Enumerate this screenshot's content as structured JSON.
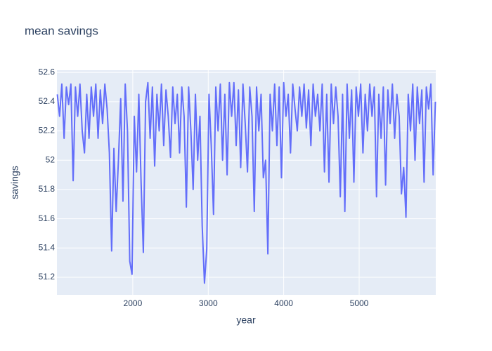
{
  "chart_data": {
    "type": "line",
    "title": "mean savings",
    "x_label": "year",
    "y_label": "savings",
    "color": "#636efa",
    "grid": true,
    "xlim": [
      995,
      6015
    ],
    "xticks": [
      2000,
      3000,
      4000,
      5000
    ],
    "ylim": [
      51.08,
      52.615
    ],
    "yticks": [
      51.2,
      51.4,
      51.6,
      51.8,
      52,
      52.2,
      52.4,
      52.6
    ],
    "x": [
      1000,
      1030,
      1060,
      1090,
      1120,
      1150,
      1180,
      1210,
      1240,
      1270,
      1300,
      1330,
      1360,
      1390,
      1420,
      1450,
      1480,
      1510,
      1540,
      1570,
      1600,
      1630,
      1660,
      1690,
      1720,
      1750,
      1780,
      1810,
      1840,
      1870,
      1900,
      1930,
      1960,
      1990,
      2020,
      2050,
      2080,
      2110,
      2140,
      2170,
      2200,
      2230,
      2260,
      2290,
      2320,
      2350,
      2380,
      2410,
      2440,
      2470,
      2500,
      2530,
      2560,
      2590,
      2620,
      2650,
      2680,
      2710,
      2740,
      2770,
      2800,
      2830,
      2860,
      2890,
      2920,
      2950,
      2980,
      3010,
      3040,
      3070,
      3100,
      3130,
      3160,
      3190,
      3220,
      3250,
      3280,
      3310,
      3340,
      3370,
      3400,
      3430,
      3460,
      3490,
      3520,
      3550,
      3580,
      3610,
      3640,
      3670,
      3700,
      3730,
      3760,
      3790,
      3820,
      3850,
      3880,
      3910,
      3940,
      3970,
      4000,
      4030,
      4060,
      4090,
      4120,
      4150,
      4180,
      4210,
      4240,
      4270,
      4300,
      4330,
      4360,
      4390,
      4420,
      4450,
      4480,
      4510,
      4540,
      4570,
      4600,
      4630,
      4660,
      4690,
      4720,
      4750,
      4780,
      4810,
      4840,
      4870,
      4900,
      4930,
      4960,
      4990,
      5020,
      5050,
      5080,
      5110,
      5140,
      5170,
      5200,
      5230,
      5260,
      5290,
      5320,
      5350,
      5380,
      5410,
      5440,
      5470,
      5500,
      5530,
      5560,
      5590,
      5620,
      5650,
      5680,
      5710,
      5740,
      5770,
      5800,
      5830,
      5860,
      5890,
      5920,
      5950,
      5980,
      6010
    ],
    "values": [
      52.45,
      52.3,
      52.52,
      52.15,
      52.5,
      52.38,
      52.52,
      51.86,
      52.5,
      52.3,
      52.52,
      52.2,
      52.05,
      52.45,
      52.15,
      52.5,
      52.3,
      52.52,
      52.15,
      52.48,
      52.25,
      52.52,
      52.35,
      52.05,
      51.38,
      52.08,
      51.65,
      52.0,
      52.42,
      51.72,
      52.52,
      52.2,
      51.31,
      51.22,
      52.3,
      51.92,
      52.45,
      51.85,
      51.37,
      52.4,
      52.53,
      52.15,
      52.5,
      51.96,
      52.45,
      52.2,
      52.52,
      52.1,
      52.48,
      52.3,
      52.02,
      52.5,
      52.25,
      52.45,
      52.05,
      52.5,
      52.3,
      51.68,
      52.5,
      52.2,
      51.8,
      52.45,
      52.0,
      52.3,
      51.55,
      51.16,
      51.39,
      52.45,
      52.1,
      51.63,
      52.5,
      52.2,
      52.52,
      52.0,
      52.45,
      51.9,
      52.53,
      52.3,
      52.53,
      52.1,
      52.48,
      51.95,
      52.52,
      52.25,
      51.92,
      52.5,
      52.3,
      51.65,
      52.5,
      52.2,
      52.45,
      51.88,
      52.0,
      51.36,
      52.45,
      52.2,
      52.52,
      52.1,
      52.5,
      51.88,
      52.53,
      52.3,
      52.45,
      52.05,
      52.52,
      52.35,
      52.2,
      52.5,
      52.3,
      52.52,
      52.22,
      52.48,
      52.1,
      52.52,
      52.3,
      52.45,
      52.2,
      52.52,
      51.92,
      52.45,
      51.85,
      52.52,
      52.25,
      52.5,
      52.3,
      51.75,
      52.45,
      51.65,
      52.52,
      52.15,
      52.48,
      51.85,
      52.5,
      52.3,
      52.52,
      52.05,
      52.45,
      52.2,
      52.52,
      52.3,
      52.5,
      51.75,
      52.45,
      52.15,
      52.5,
      51.83,
      52.48,
      52.25,
      52.52,
      52.15,
      52.45,
      52.3,
      51.77,
      51.95,
      51.61,
      52.45,
      52.2,
      52.52,
      52.0,
      52.5,
      52.25,
      52.48,
      51.85,
      52.5,
      52.35,
      52.52,
      51.9,
      52.4
    ]
  }
}
